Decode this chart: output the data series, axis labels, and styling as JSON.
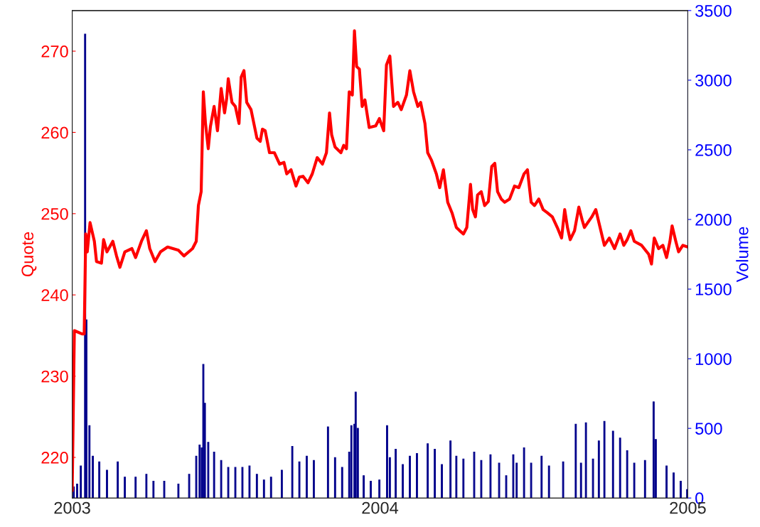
{
  "chart_data": {
    "type": "line",
    "ylabel": "Quote",
    "y2label": "Volume",
    "xlim": [
      2003,
      2005
    ],
    "xticks": [
      2003,
      2004,
      2005
    ],
    "ylim": [
      215,
      275
    ],
    "yticks": [
      220,
      230,
      240,
      250,
      260,
      270
    ],
    "y2lim": [
      0,
      3500
    ],
    "y2ticks": [
      0,
      500,
      1000,
      1500,
      2000,
      2500,
      3000,
      3500
    ],
    "grid": false,
    "legend": false,
    "series": [
      {
        "color": "#ff0000",
        "x": [
          2003.0,
          2003.007,
          2003.032,
          2003.039,
          2003.044,
          2003.049,
          2003.058,
          2003.072,
          2003.079,
          2003.095,
          2003.102,
          2003.113,
          2003.132,
          2003.144,
          2003.155,
          2003.171,
          2003.194,
          2003.206,
          2003.225,
          2003.241,
          2003.252,
          2003.269,
          2003.287,
          2003.31,
          2003.345,
          2003.363,
          2003.391,
          2003.403,
          2003.41,
          2003.419,
          2003.426,
          2003.433,
          2003.442,
          2003.449,
          2003.461,
          2003.472,
          2003.484,
          2003.495,
          2003.502,
          2003.507,
          2003.519,
          2003.53,
          2003.542,
          2003.549,
          2003.558,
          2003.567,
          2003.581,
          2003.6,
          2003.611,
          2003.618,
          2003.627,
          2003.641,
          2003.657,
          2003.674,
          2003.688,
          2003.697,
          2003.711,
          2003.727,
          2003.738,
          2003.75,
          2003.766,
          2003.78,
          2003.796,
          2003.813,
          2003.826,
          2003.836,
          2003.843,
          2003.854,
          2003.873,
          2003.882,
          2003.891,
          2003.9,
          2003.91,
          2003.917,
          2003.924,
          2003.933,
          2003.942,
          2003.951,
          2003.965,
          2003.986,
          2003.998,
          2004.012,
          2004.021,
          2004.032,
          2004.044,
          2004.058,
          2004.069,
          2004.086,
          2004.097,
          2004.109,
          2004.123,
          2004.132,
          2004.146,
          2004.155,
          2004.167,
          2004.183,
          2004.194,
          2004.206,
          2004.22,
          2004.234,
          2004.248,
          2004.259,
          2004.271,
          2004.282,
          2004.294,
          2004.301,
          2004.31,
          2004.317,
          2004.329,
          2004.34,
          2004.352,
          2004.363,
          2004.373,
          2004.382,
          2004.394,
          2004.405,
          2004.421,
          2004.437,
          2004.451,
          2004.468,
          2004.479,
          2004.491,
          2004.502,
          2004.516,
          2004.53,
          2004.544,
          2004.56,
          2004.576,
          2004.59,
          2004.6,
          2004.609,
          2004.618,
          2004.632,
          2004.646,
          2004.657,
          2004.664,
          2004.688,
          2004.701,
          2004.715,
          2004.729,
          2004.745,
          2004.762,
          2004.78,
          2004.792,
          2004.803,
          2004.815,
          2004.826,
          2004.85,
          2004.873,
          2004.882,
          2004.891,
          2004.905,
          2004.919,
          2004.931,
          2004.942,
          2004.949,
          2004.961,
          2004.97,
          2004.984,
          2005.0
        ],
        "values": [
          215.9,
          235.6,
          235.2,
          235.2,
          247.5,
          245.3,
          248.9,
          246.6,
          244.1,
          243.9,
          246.8,
          245.3,
          246.6,
          244.8,
          243.4,
          245.3,
          245.7,
          244.6,
          246.6,
          247.9,
          245.7,
          244.1,
          245.3,
          245.9,
          245.5,
          244.8,
          245.7,
          246.6,
          251.0,
          252.7,
          265.0,
          261.1,
          258.0,
          260.7,
          263.2,
          260.2,
          265.4,
          262.4,
          264.2,
          266.6,
          263.7,
          263.2,
          261.1,
          266.8,
          267.6,
          263.7,
          262.8,
          259.3,
          258.9,
          260.4,
          260.2,
          257.5,
          257.5,
          256.1,
          256.3,
          254.9,
          255.4,
          253.4,
          254.5,
          254.6,
          253.8,
          254.9,
          256.9,
          256.1,
          257.5,
          262.4,
          259.7,
          258.2,
          257.5,
          258.4,
          258.0,
          265.0,
          264.6,
          272.5,
          268.1,
          267.8,
          263.2,
          264.0,
          260.6,
          260.8,
          261.7,
          260.2,
          268.3,
          269.4,
          263.2,
          263.7,
          262.8,
          264.6,
          267.6,
          265.0,
          263.2,
          263.7,
          261.1,
          257.5,
          256.6,
          254.9,
          253.2,
          255.4,
          251.4,
          250.1,
          248.3,
          247.9,
          247.5,
          248.3,
          253.6,
          250.5,
          249.6,
          252.3,
          252.7,
          251.0,
          251.5,
          255.8,
          256.2,
          252.7,
          251.8,
          251.4,
          251.8,
          253.4,
          253.2,
          254.9,
          255.4,
          251.4,
          251.0,
          251.8,
          250.5,
          250.1,
          249.6,
          248.3,
          247.0,
          250.5,
          248.3,
          246.8,
          247.9,
          250.8,
          249.2,
          248.3,
          249.6,
          250.5,
          248.3,
          246.1,
          247.0,
          245.7,
          247.5,
          246.1,
          246.8,
          247.9,
          246.6,
          246.1,
          245.0,
          243.8,
          247.0,
          245.7,
          246.1,
          244.6,
          246.6,
          248.5,
          246.6,
          245.3,
          246.1,
          245.9
        ]
      },
      {
        "type": "bar",
        "axis": "y2",
        "color": "#00008b",
        "x": [
          2003.005,
          2003.016,
          2003.028,
          2003.042,
          2003.046,
          2003.056,
          2003.067,
          2003.088,
          2003.113,
          2003.148,
          2003.171,
          2003.206,
          2003.241,
          2003.264,
          2003.299,
          2003.345,
          2003.38,
          2003.403,
          2003.414,
          2003.421,
          2003.426,
          2003.431,
          2003.442,
          2003.461,
          2003.484,
          2003.507,
          2003.53,
          2003.553,
          2003.576,
          2003.6,
          2003.623,
          2003.646,
          2003.681,
          2003.715,
          2003.738,
          2003.762,
          2003.785,
          2003.831,
          2003.854,
          2003.877,
          2003.9,
          2003.907,
          2003.917,
          2003.921,
          2003.928,
          2003.947,
          2003.97,
          2003.998,
          2004.023,
          2004.032,
          2004.051,
          2004.074,
          2004.097,
          2004.12,
          2004.155,
          2004.178,
          2004.201,
          2004.229,
          2004.248,
          2004.271,
          2004.306,
          2004.329,
          2004.359,
          2004.387,
          2004.41,
          2004.433,
          2004.444,
          2004.468,
          2004.491,
          2004.525,
          2004.549,
          2004.595,
          2004.636,
          2004.653,
          2004.669,
          2004.692,
          2004.711,
          2004.729,
          2004.757,
          2004.78,
          2004.803,
          2004.826,
          2004.861,
          2004.889,
          2004.896,
          2004.931,
          2004.954,
          2004.977,
          2004.998
        ],
        "values": [
          80,
          100,
          230,
          3330,
          1280,
          520,
          300,
          260,
          200,
          260,
          150,
          150,
          170,
          120,
          120,
          100,
          170,
          300,
          380,
          360,
          960,
          680,
          400,
          330,
          270,
          220,
          220,
          220,
          230,
          170,
          130,
          150,
          200,
          370,
          260,
          300,
          270,
          510,
          290,
          220,
          330,
          520,
          530,
          760,
          500,
          160,
          120,
          130,
          520,
          290,
          350,
          240,
          300,
          320,
          390,
          350,
          240,
          410,
          300,
          280,
          330,
          270,
          310,
          250,
          160,
          310,
          250,
          360,
          250,
          300,
          230,
          260,
          530,
          250,
          540,
          280,
          410,
          550,
          480,
          430,
          340,
          250,
          270,
          690,
          420,
          230,
          180,
          120,
          60
        ]
      }
    ]
  }
}
